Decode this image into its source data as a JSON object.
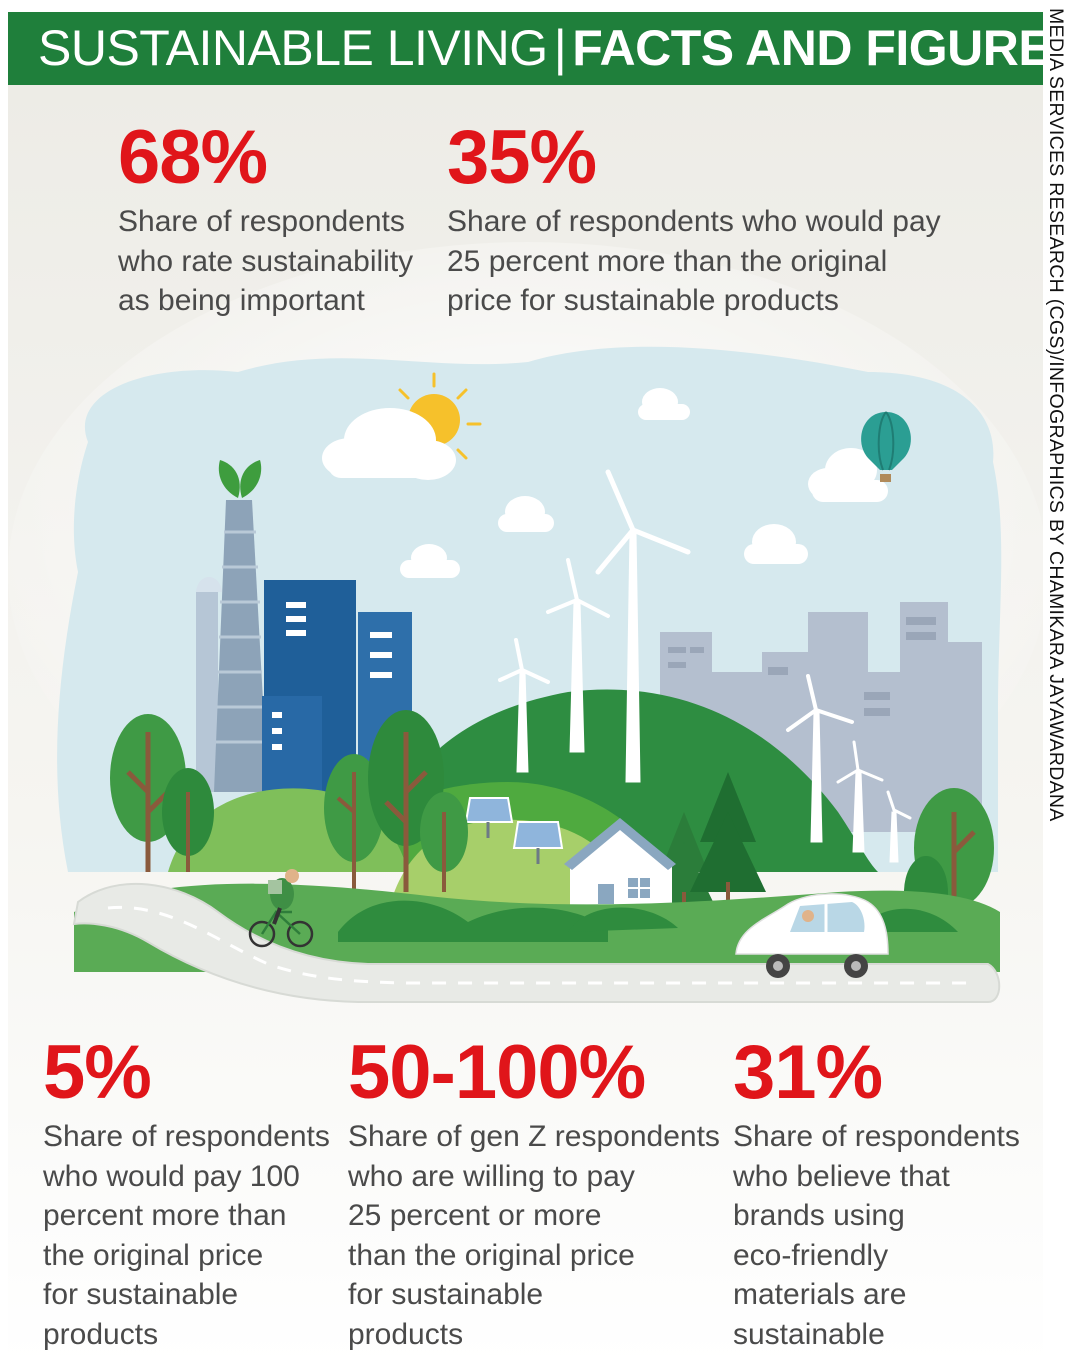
{
  "header": {
    "title_light": "SUSTAINABLE LIVING",
    "separator": "|",
    "title_bold": "FACTS AND FIGURES"
  },
  "credit": "MEDIA SERVICES RESEARCH (CGS)/INFOGRAPHICS BY CHAMIKARA JAYAWARDANA",
  "stats_top": [
    {
      "value": "68%",
      "lines": [
        "Share of respondents",
        "who rate sustainability",
        "as being important"
      ]
    },
    {
      "value": "35%",
      "lines": [
        "Share of respondents who would pay",
        "25 percent more than the original",
        "price for sustainable products"
      ]
    }
  ],
  "stats_bottom": [
    {
      "value": "5%",
      "lines": [
        "Share of respondents",
        "who would pay 100",
        "percent more than",
        "the original price",
        "for sustainable",
        "products"
      ]
    },
    {
      "value": "50-100%",
      "lines": [
        "Share of gen Z respondents",
        "who are willing to pay",
        "25 percent or more",
        "than the original price",
        "for sustainable",
        "products"
      ]
    },
    {
      "value": "31%",
      "lines": [
        "Share of respondents",
        "who believe that",
        "brands using",
        "eco-friendly",
        "materials are",
        "sustainable"
      ]
    }
  ],
  "colors": {
    "header_bg": "#1f7f3b",
    "stat_value": "#e0151a",
    "stat_text": "#4a4a4a"
  },
  "illustration": {
    "icons": [
      "sun-icon",
      "cloud-icon",
      "hot-air-balloon-icon",
      "smokestack-icon",
      "leaf-icon",
      "office-building-icon",
      "wind-turbine-icon",
      "solar-panel-icon",
      "house-icon",
      "tree-icon",
      "cyclist-icon",
      "car-icon",
      "road-icon"
    ]
  }
}
